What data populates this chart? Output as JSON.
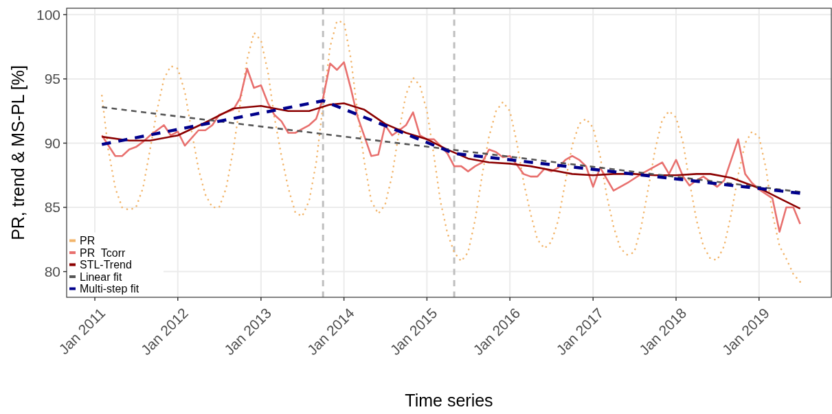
{
  "chart_data": {
    "type": "line",
    "xlabel": "Time series",
    "ylabel": "PR, trend & MS-PL [%]",
    "xlim": [
      "2010-08-30",
      "2019-11-15"
    ],
    "ylim": [
      78,
      100.5
    ],
    "xticks": [
      {
        "value": "2011-01",
        "label": "Jan 2011"
      },
      {
        "value": "2012-01",
        "label": "Jan 2012"
      },
      {
        "value": "2013-01",
        "label": "Jan 2013"
      },
      {
        "value": "2014-01",
        "label": "Jan 2014"
      },
      {
        "value": "2015-01",
        "label": "Jan 2015"
      },
      {
        "value": "2016-01",
        "label": "Jan 2016"
      },
      {
        "value": "2017-01",
        "label": "Jan 2017"
      },
      {
        "value": "2018-01",
        "label": "Jan 2018"
      },
      {
        "value": "2019-01",
        "label": "Jan 2019"
      }
    ],
    "yticks": [
      80,
      85,
      90,
      95,
      100
    ],
    "grid": true,
    "legend": "bottom left",
    "ref_lines": [
      {
        "axis": "x",
        "value": "2013-10",
        "color": "#bfbfbf",
        "line_style": "dashed"
      },
      {
        "axis": "x",
        "value": "2015-05",
        "color": "#bfbfbf",
        "line_style": "dashed"
      }
    ],
    "series": [
      {
        "name": "PR",
        "color": "#f2b56b",
        "line_style": "dotted",
        "x": [
          "2011-02",
          "2011-03",
          "2011-04",
          "2011-05",
          "2011-06",
          "2011-07",
          "2011-08",
          "2011-09",
          "2011-10",
          "2011-11",
          "2011-12",
          "2012-01",
          "2012-02",
          "2012-03",
          "2012-04",
          "2012-05",
          "2012-06",
          "2012-07",
          "2012-08",
          "2012-09",
          "2012-10",
          "2012-11",
          "2012-12",
          "2013-01",
          "2013-02",
          "2013-03",
          "2013-04",
          "2013-05",
          "2013-06",
          "2013-07",
          "2013-08",
          "2013-09",
          "2013-10",
          "2013-11",
          "2013-12",
          "2014-01",
          "2014-02",
          "2014-03",
          "2014-04",
          "2014-05",
          "2014-06",
          "2014-07",
          "2014-08",
          "2014-09",
          "2014-10",
          "2014-11",
          "2014-12",
          "2015-01",
          "2015-02",
          "2015-03",
          "2015-04",
          "2015-05",
          "2015-06",
          "2015-07",
          "2015-08",
          "2015-09",
          "2015-10",
          "2015-11",
          "2015-12",
          "2016-01",
          "2016-02",
          "2016-03",
          "2016-04",
          "2016-05",
          "2016-06",
          "2016-07",
          "2016-08",
          "2016-09",
          "2016-10",
          "2016-11",
          "2016-12",
          "2017-01",
          "2017-02",
          "2017-03",
          "2017-04",
          "2017-05",
          "2017-06",
          "2017-07",
          "2017-08",
          "2017-09",
          "2017-10",
          "2017-11",
          "2017-12",
          "2018-01",
          "2018-02",
          "2018-03",
          "2018-04",
          "2018-05",
          "2018-06",
          "2018-07",
          "2018-08",
          "2018-09",
          "2018-10",
          "2018-11",
          "2018-12",
          "2019-01",
          "2019-02",
          "2019-03",
          "2019-04",
          "2019-05",
          "2019-06",
          "2019-07"
        ],
        "values": [
          93.7,
          89.5,
          86.5,
          85.0,
          84.8,
          85.0,
          86.5,
          89.5,
          92.5,
          95.0,
          96.0,
          95.8,
          94,
          91,
          88,
          86,
          85.0,
          85.0,
          86.5,
          89.5,
          93,
          96.5,
          98.6,
          98.0,
          95.5,
          92,
          89,
          86.5,
          84.6,
          84.3,
          85.5,
          88.5,
          93,
          97.5,
          99.5,
          99.4,
          96.5,
          92.5,
          88.5,
          85.5,
          84.5,
          85.2,
          87.5,
          91,
          93.8,
          95.1,
          94.5,
          92.5,
          89,
          85.5,
          83,
          81.5,
          80.8,
          81.5,
          84,
          87.5,
          90.5,
          92.5,
          93.2,
          92.5,
          90,
          87,
          84.5,
          82.5,
          81.8,
          82.3,
          84,
          87,
          89.8,
          91.5,
          91.9,
          91.2,
          89,
          86,
          83.5,
          81.8,
          81.3,
          81.5,
          83.5,
          86.5,
          89.5,
          91.8,
          92.5,
          92.0,
          90,
          87,
          84,
          82,
          81,
          80.9,
          82,
          84.5,
          87.5,
          90,
          90.9,
          90.5,
          88,
          84.5,
          82,
          81,
          79.8,
          79.2
        ]
      },
      {
        "name": "PR  Tcorr",
        "color": "#e8706e",
        "x": [
          "2011-02",
          "2011-04",
          "2011-05",
          "2011-06",
          "2011-07",
          "2011-08",
          "2011-09",
          "2011-11",
          "2011-12",
          "2012-01",
          "2012-02",
          "2012-04",
          "2012-05",
          "2012-06",
          "2012-07",
          "2012-09",
          "2012-10",
          "2012-11",
          "2012-12",
          "2013-01",
          "2013-02",
          "2013-03",
          "2013-04",
          "2013-05",
          "2013-06",
          "2013-07",
          "2013-08",
          "2013-09",
          "2013-10",
          "2013-11",
          "2013-12",
          "2014-01",
          "2014-02",
          "2014-03",
          "2014-05",
          "2014-06",
          "2014-07",
          "2014-08",
          "2014-09",
          "2014-10",
          "2014-11",
          "2014-12",
          "2015-01",
          "2015-02",
          "2015-03",
          "2015-04",
          "2015-05",
          "2015-06",
          "2015-07",
          "2015-08",
          "2015-09",
          "2015-10",
          "2015-11",
          "2015-12",
          "2016-01",
          "2016-02",
          "2016-03",
          "2016-04",
          "2016-05",
          "2016-06",
          "2016-07",
          "2016-08",
          "2016-09",
          "2016-10",
          "2016-11",
          "2016-12",
          "2017-01",
          "2017-02",
          "2017-04",
          "2017-06",
          "2017-08",
          "2017-11",
          "2017-12",
          "2018-01",
          "2018-02",
          "2018-03",
          "2018-04",
          "2018-05",
          "2018-07",
          "2018-08",
          "2018-10",
          "2018-11",
          "2018-12",
          "2019-01",
          "2019-03",
          "2019-04",
          "2019-05",
          "2019-06",
          "2019-07"
        ],
        "values": [
          90.6,
          89.0,
          89.0,
          89.5,
          89.7,
          90.1,
          90.6,
          91.4,
          90.6,
          90.9,
          89.8,
          91.0,
          91.0,
          91.4,
          92.2,
          92.6,
          93.5,
          95.8,
          94.3,
          94.5,
          93.1,
          92.2,
          91.7,
          90.8,
          90.8,
          91.1,
          91.4,
          91.9,
          93.5,
          96.2,
          95.7,
          96.3,
          94.2,
          92.1,
          89.0,
          89.1,
          91.4,
          90.6,
          91.0,
          91.4,
          92.4,
          90.6,
          90.3,
          90.3,
          89.8,
          89.2,
          88.2,
          88.2,
          87.8,
          88.2,
          88.5,
          89.5,
          89.3,
          88.9,
          89.0,
          88.3,
          87.6,
          87.4,
          87.4,
          88.0,
          87.8,
          88.1,
          88.7,
          89.0,
          88.7,
          88.2,
          86.6,
          88.1,
          86.3,
          86.9,
          87.6,
          88.5,
          87.6,
          88.7,
          87.4,
          86.7,
          87.1,
          87.4,
          86.6,
          87.1,
          90.3,
          87.6,
          86.9,
          86.4,
          85.7,
          83.1,
          85.0,
          85.0,
          83.7
        ]
      },
      {
        "name": "STL-Trend",
        "color": "#8b0000",
        "x": [
          "2011-02",
          "2011-06",
          "2011-09",
          "2012-01",
          "2012-05",
          "2012-09",
          "2013-01",
          "2013-05",
          "2013-08",
          "2013-11",
          "2014-01",
          "2014-04",
          "2014-07",
          "2014-10",
          "2015-01",
          "2015-04",
          "2015-07",
          "2015-10",
          "2016-01",
          "2016-04",
          "2016-07",
          "2016-10",
          "2017-01",
          "2017-04",
          "2017-07",
          "2017-10",
          "2018-01",
          "2018-04",
          "2018-06",
          "2018-09",
          "2019-01",
          "2019-04",
          "2019-07"
        ],
        "values": [
          90.5,
          90.2,
          90.2,
          90.6,
          91.6,
          92.7,
          92.9,
          92.5,
          92.5,
          93.0,
          93.1,
          92.6,
          91.5,
          90.8,
          90.3,
          89.5,
          88.8,
          88.5,
          88.4,
          88.2,
          87.9,
          87.6,
          87.5,
          87.6,
          87.6,
          87.5,
          87.5,
          87.6,
          87.6,
          87.3,
          86.5,
          85.7,
          84.9
        ]
      },
      {
        "name": "Linear fit",
        "color": "#555555",
        "line_style": "dashed",
        "x": [
          "2011-02",
          "2019-07"
        ],
        "values": [
          92.8,
          86.2
        ]
      },
      {
        "name": "Multi-step fit",
        "color": "#00008b",
        "line_style": "dashed",
        "x": [
          "2011-02",
          "2013-10",
          "2015-05",
          "2019-07"
        ],
        "values": [
          89.9,
          93.3,
          89.2,
          86.1
        ]
      }
    ]
  }
}
